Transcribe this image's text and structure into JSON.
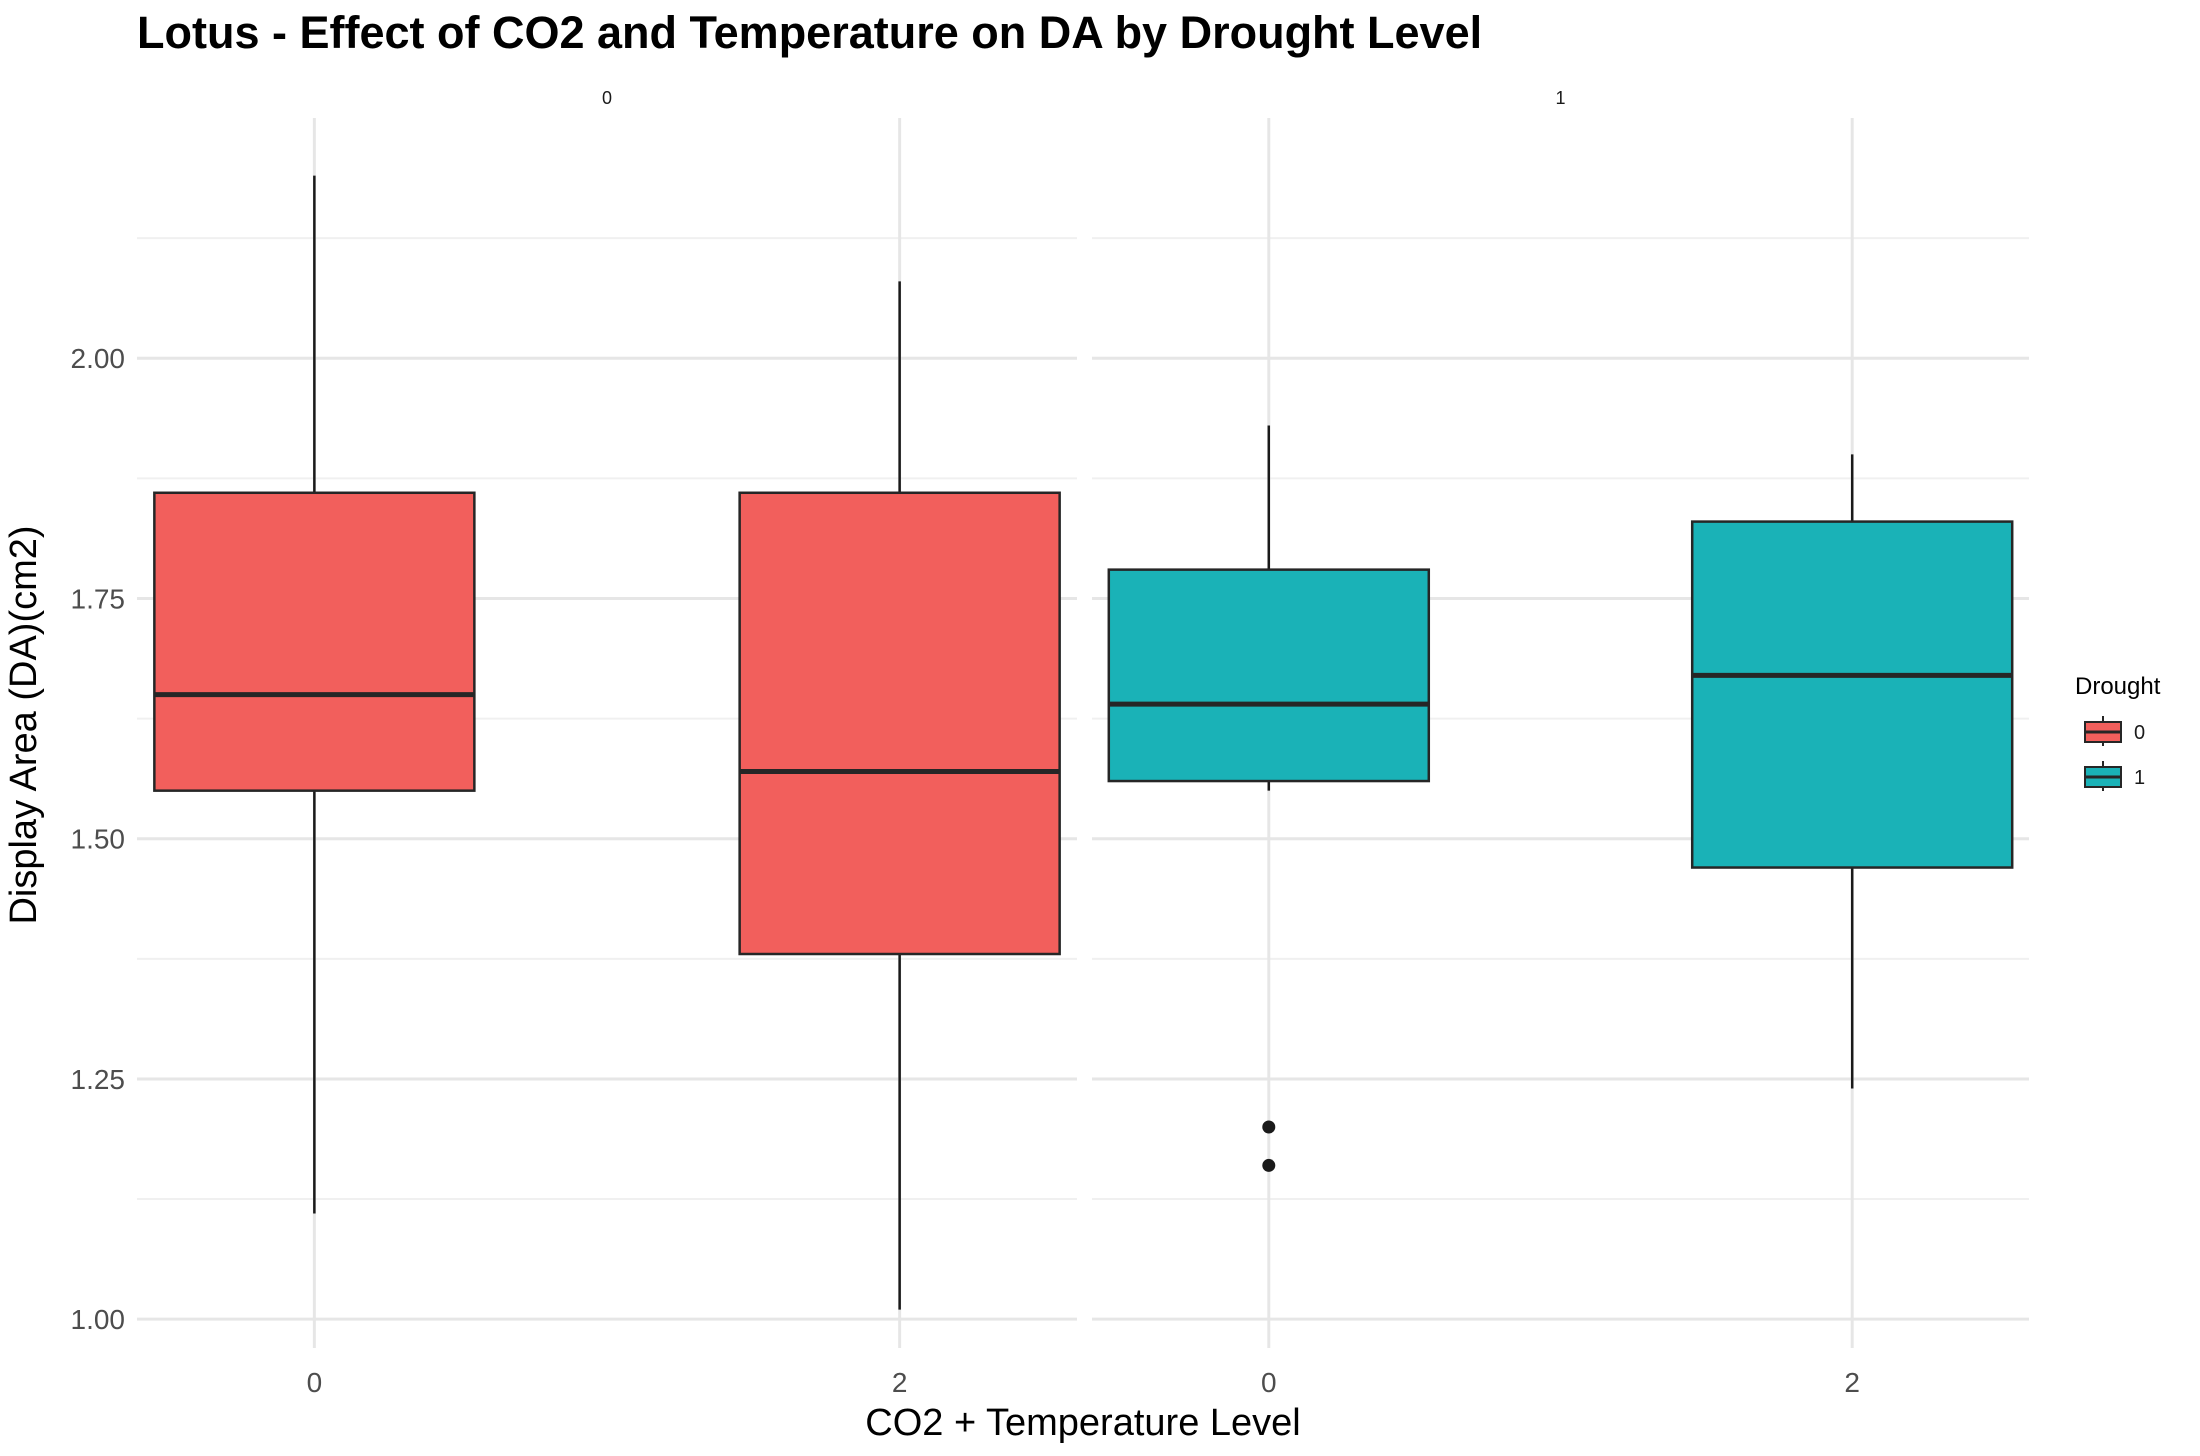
{
  "chart_data": {
    "type": "box",
    "title": "Lotus - Effect of CO2 and Temperature on DA by Drought Level",
    "xlabel": "CO2 + Temperature Level",
    "ylabel": "Display Area (DA)(cm2)",
    "ylim": [
      0.97,
      2.25
    ],
    "y_ticks": [
      "1.00",
      "1.25",
      "1.50",
      "1.75",
      "2.00"
    ],
    "grid": true,
    "legend": {
      "title": "Drought",
      "position": "right",
      "entries": [
        "0",
        "1"
      ]
    },
    "colors": {
      "0": "#F25F5C",
      "1": "#1AB2B7"
    },
    "facets": [
      {
        "label": "0",
        "drought": "0",
        "categories": [
          "0",
          "2"
        ],
        "boxes": [
          {
            "x": "0",
            "min": 1.11,
            "q1": 1.55,
            "median": 1.65,
            "q3": 1.86,
            "max": 2.19,
            "outliers": []
          },
          {
            "x": "2",
            "min": 1.01,
            "q1": 1.38,
            "median": 1.57,
            "q3": 1.86,
            "max": 2.08,
            "outliers": []
          }
        ]
      },
      {
        "label": "1",
        "drought": "1",
        "categories": [
          "0",
          "2"
        ],
        "boxes": [
          {
            "x": "0",
            "min": 1.55,
            "q1": 1.56,
            "median": 1.64,
            "q3": 1.78,
            "max": 1.93,
            "outliers": [
              1.2,
              1.16
            ]
          },
          {
            "x": "2",
            "min": 1.24,
            "q1": 1.47,
            "median": 1.67,
            "q3": 1.83,
            "max": 1.9,
            "outliers": []
          }
        ]
      }
    ]
  }
}
